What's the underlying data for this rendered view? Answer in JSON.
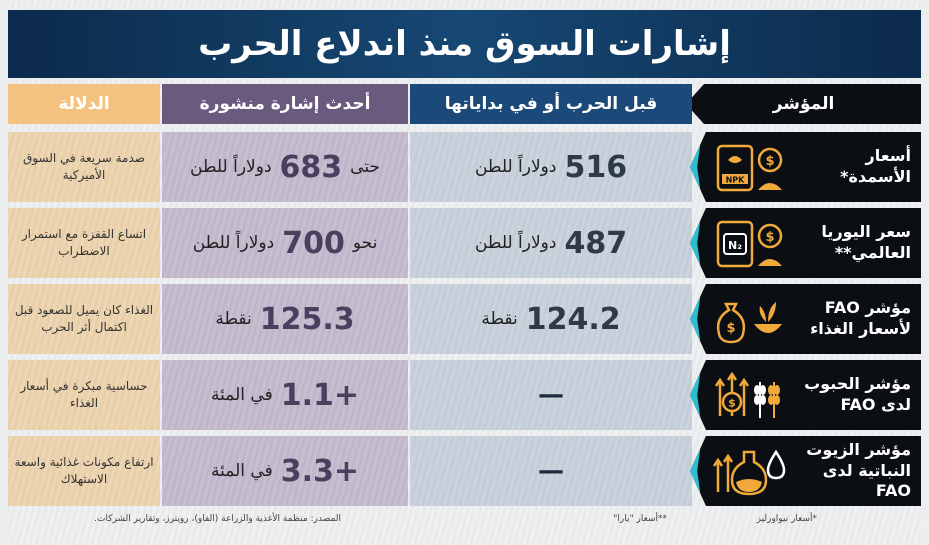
{
  "title": "إشارات السوق منذ اندلاع الحرب",
  "headers": {
    "indicator": "المؤشر",
    "before_war": "قبل الحرب أو في بداياتها",
    "latest": "أحدث إشارة منشورة",
    "meaning": "الدلالة"
  },
  "rows": [
    {
      "indicator": "أسعار الأسمدة*",
      "icon": "fertilizer-bag-npk-dollar-icon",
      "icon_text": "NPK",
      "before_value": "516",
      "before_unit": "دولاراً للطن",
      "latest_prefix": "حتى",
      "latest_value": "683",
      "latest_unit": "دولاراً للطن",
      "meaning": "صدمة سريعة في السوق الأميركية"
    },
    {
      "indicator": "سعر اليوريا العالمي**",
      "icon": "urea-bag-n2-dollar-icon",
      "icon_text": "N₂",
      "before_value": "487",
      "before_unit": "دولاراً للطن",
      "latest_prefix": "نحو",
      "latest_value": "700",
      "latest_unit": "دولاراً للطن",
      "meaning": "اتساع القفزة مع استمرار الاضطراب"
    },
    {
      "indicator": "مؤشر FAO لأسعار الغذاء",
      "icon": "money-bag-food-bowl-icon",
      "icon_text": "",
      "before_value": "124.2",
      "before_unit": "نقطة",
      "latest_prefix": "",
      "latest_value": "125.3",
      "latest_unit": "نقطة",
      "meaning": "الغذاء كان يميل للصعود قبل اكتمال أثر الحرب"
    },
    {
      "indicator": "مؤشر الحبوب لدى FAO",
      "icon": "grain-coin-arrows-icon",
      "icon_text": "",
      "before_value": "—",
      "before_unit": "",
      "latest_prefix": "",
      "latest_value": "+1.1",
      "latest_unit": "في المئة",
      "meaning": "حساسية مبكرة في أسعار الغذاء"
    },
    {
      "indicator": "مؤشر الزيوت النباتية لدى FAO",
      "icon": "oil-bottle-drop-arrows-icon",
      "icon_text": "",
      "before_value": "—",
      "before_unit": "",
      "latest_prefix": "",
      "latest_value": "+3.3",
      "latest_unit": "في المئة",
      "meaning": "ارتفاع مكونات غذائية واسعة الاستهلاك"
    }
  ],
  "footer": {
    "note1": "*أسعار نيواورليز",
    "note2": "**أسعار \"يارا\"",
    "source": "المصدر: منظمة الأغذية والزراعة (الفاو)، رويترز، وتقارير الشركات."
  },
  "colors": {
    "title_bg": "#164874",
    "indicator_bg": "#0b0f14",
    "before_bg": "#1b4a7a",
    "latest_bg": "#6a5a7e",
    "meaning_bg": "#f4c27f",
    "accent": "#f2a93b",
    "arrow_accent": "#2dbfd0"
  }
}
